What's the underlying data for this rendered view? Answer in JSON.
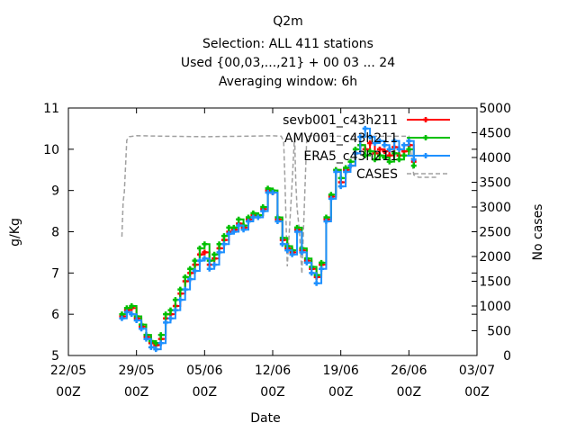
{
  "chart_data": {
    "type": "line",
    "title": "Q2m",
    "subtitle": [
      "Selection: ALL    411 stations",
      "Used {00,03,...,21} + 00 03 ... 24",
      "Averaging window:  6h"
    ],
    "xlabel": "Date",
    "ylabel": "g/Kg",
    "y2label": "No cases",
    "x_ticks": [
      "22/05",
      "29/05",
      "05/06",
      "12/06",
      "19/06",
      "26/06",
      "03/07"
    ],
    "x_tick_sub": "00Z",
    "xlim": [
      "2023-05-22T00",
      "2023-07-03T00"
    ],
    "ylim": [
      5,
      11
    ],
    "y_ticks": [
      5,
      6,
      7,
      8,
      9,
      10,
      11
    ],
    "y2lim": [
      0,
      5000
    ],
    "y2_ticks": [
      0,
      500,
      1000,
      1500,
      2000,
      2500,
      3000,
      3500,
      4000,
      4500,
      5000
    ],
    "grid": false,
    "legend_position": "top-right",
    "series": [
      {
        "name": "sevb001_c43h211",
        "color": "#ff0000",
        "axis": "left",
        "x": [
          "2023-05-27T12",
          "2023-05-28T00",
          "2023-05-28T12",
          "2023-05-29T00",
          "2023-05-29T12",
          "2023-05-30T00",
          "2023-05-30T12",
          "2023-05-31T00",
          "2023-05-31T12",
          "2023-06-01T00",
          "2023-06-01T12",
          "2023-06-02T00",
          "2023-06-02T12",
          "2023-06-03T00",
          "2023-06-03T12",
          "2023-06-04T00",
          "2023-06-04T12",
          "2023-06-05T00",
          "2023-06-05T12",
          "2023-06-06T00",
          "2023-06-06T12",
          "2023-06-07T00",
          "2023-06-07T12",
          "2023-06-08T00",
          "2023-06-08T12",
          "2023-06-09T00",
          "2023-06-09T12",
          "2023-06-10T00",
          "2023-06-10T12",
          "2023-06-11T00",
          "2023-06-11T12",
          "2023-06-12T00",
          "2023-06-12T12",
          "2023-06-13T00",
          "2023-06-13T12",
          "2023-06-14T00",
          "2023-06-14T12",
          "2023-06-15T00",
          "2023-06-15T12",
          "2023-06-16T00",
          "2023-06-16T12",
          "2023-06-17T00",
          "2023-06-17T12",
          "2023-06-18T00",
          "2023-06-18T12",
          "2023-06-19T00",
          "2023-06-19T12",
          "2023-06-20T00",
          "2023-06-20T12",
          "2023-06-21T00",
          "2023-06-21T12",
          "2023-06-22T00",
          "2023-06-22T12",
          "2023-06-23T00",
          "2023-06-23T12",
          "2023-06-24T00",
          "2023-06-24T12",
          "2023-06-25T00",
          "2023-06-25T12",
          "2023-06-26T00",
          "2023-06-26T12"
        ],
        "values": [
          5.95,
          6.1,
          6.15,
          5.9,
          5.7,
          5.45,
          5.3,
          5.25,
          5.4,
          5.9,
          6.0,
          6.2,
          6.5,
          6.8,
          7.0,
          7.2,
          7.45,
          7.5,
          7.2,
          7.35,
          7.6,
          7.8,
          8.0,
          8.05,
          8.2,
          8.1,
          8.3,
          8.4,
          8.4,
          8.55,
          9.0,
          8.95,
          8.3,
          7.8,
          7.6,
          7.5,
          8.05,
          7.55,
          7.3,
          7.1,
          6.9,
          7.2,
          8.3,
          8.85,
          9.5,
          9.2,
          9.5,
          9.6,
          9.9,
          10.1,
          10.0,
          10.15,
          9.9,
          10.0,
          9.95,
          9.85,
          10.05,
          9.85,
          9.95,
          10.1,
          9.7
        ]
      },
      {
        "name": "AMV001_c43h211",
        "color": "#00c000",
        "axis": "left",
        "x": [
          "2023-05-27T12",
          "2023-05-28T00",
          "2023-05-28T12",
          "2023-05-29T00",
          "2023-05-29T12",
          "2023-05-30T00",
          "2023-05-30T12",
          "2023-05-31T00",
          "2023-05-31T12",
          "2023-06-01T00",
          "2023-06-01T12",
          "2023-06-02T00",
          "2023-06-02T12",
          "2023-06-03T00",
          "2023-06-03T12",
          "2023-06-04T00",
          "2023-06-04T12",
          "2023-06-05T00",
          "2023-06-05T12",
          "2023-06-06T00",
          "2023-06-06T12",
          "2023-06-07T00",
          "2023-06-07T12",
          "2023-06-08T00",
          "2023-06-08T12",
          "2023-06-09T00",
          "2023-06-09T12",
          "2023-06-10T00",
          "2023-06-10T12",
          "2023-06-11T00",
          "2023-06-11T12",
          "2023-06-12T00",
          "2023-06-12T12",
          "2023-06-13T00",
          "2023-06-13T12",
          "2023-06-14T00",
          "2023-06-14T12",
          "2023-06-15T00",
          "2023-06-15T12",
          "2023-06-16T00",
          "2023-06-16T12",
          "2023-06-17T00",
          "2023-06-17T12",
          "2023-06-18T00",
          "2023-06-18T12",
          "2023-06-19T00",
          "2023-06-19T12",
          "2023-06-20T00",
          "2023-06-20T12",
          "2023-06-21T00",
          "2023-06-21T12",
          "2023-06-22T00",
          "2023-06-22T12",
          "2023-06-23T00",
          "2023-06-23T12",
          "2023-06-24T00",
          "2023-06-24T12",
          "2023-06-25T00",
          "2023-06-25T12",
          "2023-06-26T00",
          "2023-06-26T12"
        ],
        "values": [
          6.0,
          6.15,
          6.2,
          5.95,
          5.75,
          5.5,
          5.35,
          5.3,
          5.5,
          6.0,
          6.1,
          6.35,
          6.6,
          6.9,
          7.1,
          7.3,
          7.6,
          7.7,
          7.3,
          7.45,
          7.7,
          7.9,
          8.1,
          8.1,
          8.3,
          8.15,
          8.35,
          8.45,
          8.4,
          8.6,
          9.05,
          9.0,
          8.35,
          7.85,
          7.65,
          7.55,
          8.1,
          7.6,
          7.35,
          7.15,
          6.95,
          7.25,
          8.35,
          8.9,
          9.5,
          9.3,
          9.55,
          9.7,
          10.0,
          10.1,
          9.85,
          9.95,
          9.75,
          9.85,
          9.8,
          9.7,
          9.9,
          9.75,
          9.85,
          10.0,
          9.6
        ]
      },
      {
        "name": "ERA5_c43h211",
        "color": "#1e90ff",
        "axis": "left",
        "x": [
          "2023-05-27T12",
          "2023-05-28T00",
          "2023-05-28T12",
          "2023-05-29T00",
          "2023-05-29T12",
          "2023-05-30T00",
          "2023-05-30T12",
          "2023-05-31T00",
          "2023-05-31T12",
          "2023-06-01T00",
          "2023-06-01T12",
          "2023-06-02T00",
          "2023-06-02T12",
          "2023-06-03T00",
          "2023-06-03T12",
          "2023-06-04T00",
          "2023-06-04T12",
          "2023-06-05T00",
          "2023-06-05T12",
          "2023-06-06T00",
          "2023-06-06T12",
          "2023-06-07T00",
          "2023-06-07T12",
          "2023-06-08T00",
          "2023-06-08T12",
          "2023-06-09T00",
          "2023-06-09T12",
          "2023-06-10T00",
          "2023-06-10T12",
          "2023-06-11T00",
          "2023-06-11T12",
          "2023-06-12T00",
          "2023-06-12T12",
          "2023-06-13T00",
          "2023-06-13T12",
          "2023-06-14T00",
          "2023-06-14T12",
          "2023-06-15T00",
          "2023-06-15T12",
          "2023-06-16T00",
          "2023-06-16T12",
          "2023-06-17T00",
          "2023-06-17T12",
          "2023-06-18T00",
          "2023-06-18T12",
          "2023-06-19T00",
          "2023-06-19T12",
          "2023-06-20T00",
          "2023-06-20T12",
          "2023-06-21T00",
          "2023-06-21T12",
          "2023-06-22T00",
          "2023-06-22T12",
          "2023-06-23T00",
          "2023-06-23T12",
          "2023-06-24T00",
          "2023-06-24T12",
          "2023-06-25T00",
          "2023-06-25T12",
          "2023-06-26T00",
          "2023-06-26T12"
        ],
        "values": [
          5.9,
          6.05,
          6.0,
          5.85,
          5.65,
          5.4,
          5.2,
          5.15,
          5.3,
          5.8,
          5.9,
          6.1,
          6.35,
          6.6,
          6.85,
          7.05,
          7.3,
          7.35,
          7.1,
          7.2,
          7.5,
          7.7,
          7.95,
          8.0,
          8.15,
          8.05,
          8.25,
          8.35,
          8.35,
          8.5,
          8.95,
          8.95,
          8.25,
          7.7,
          7.55,
          7.45,
          8.0,
          7.5,
          7.25,
          7.0,
          6.75,
          7.1,
          8.25,
          8.8,
          9.45,
          9.1,
          9.45,
          9.6,
          9.9,
          10.3,
          10.5,
          10.3,
          10.15,
          10.2,
          10.1,
          10.0,
          10.2,
          10.0,
          10.1,
          10.2,
          9.75
        ]
      },
      {
        "name": "CASES",
        "color": "#a0a0a0",
        "axis": "right",
        "dash": true,
        "x": [
          "2023-05-27T12",
          "2023-05-27T15",
          "2023-05-27T18",
          "2023-05-28T00",
          "2023-05-28T06",
          "2023-05-29T00",
          "2023-06-01T00",
          "2023-06-05T00",
          "2023-06-09T00",
          "2023-06-12T00",
          "2023-06-12T21",
          "2023-06-13T00",
          "2023-06-13T03",
          "2023-06-13T06",
          "2023-06-13T12",
          "2023-06-14T00",
          "2023-06-14T06",
          "2023-06-14T09",
          "2023-06-14T12",
          "2023-06-14T18",
          "2023-06-15T00",
          "2023-06-15T06",
          "2023-06-15T12",
          "2023-06-15T18",
          "2023-06-16T00",
          "2023-06-19T00",
          "2023-06-22T00",
          "2023-06-26T00",
          "2023-06-26T12",
          "2023-06-27T00",
          "2023-06-29T00"
        ],
        "values": [
          2400,
          3100,
          3300,
          4350,
          4420,
          4440,
          4430,
          4420,
          4430,
          4440,
          4430,
          4380,
          4350,
          3600,
          1800,
          3500,
          4450,
          3500,
          3000,
          2500,
          1650,
          3000,
          4400,
          4430,
          4440,
          4430,
          4430,
          4430,
          3650,
          3600,
          3600
        ]
      }
    ]
  }
}
